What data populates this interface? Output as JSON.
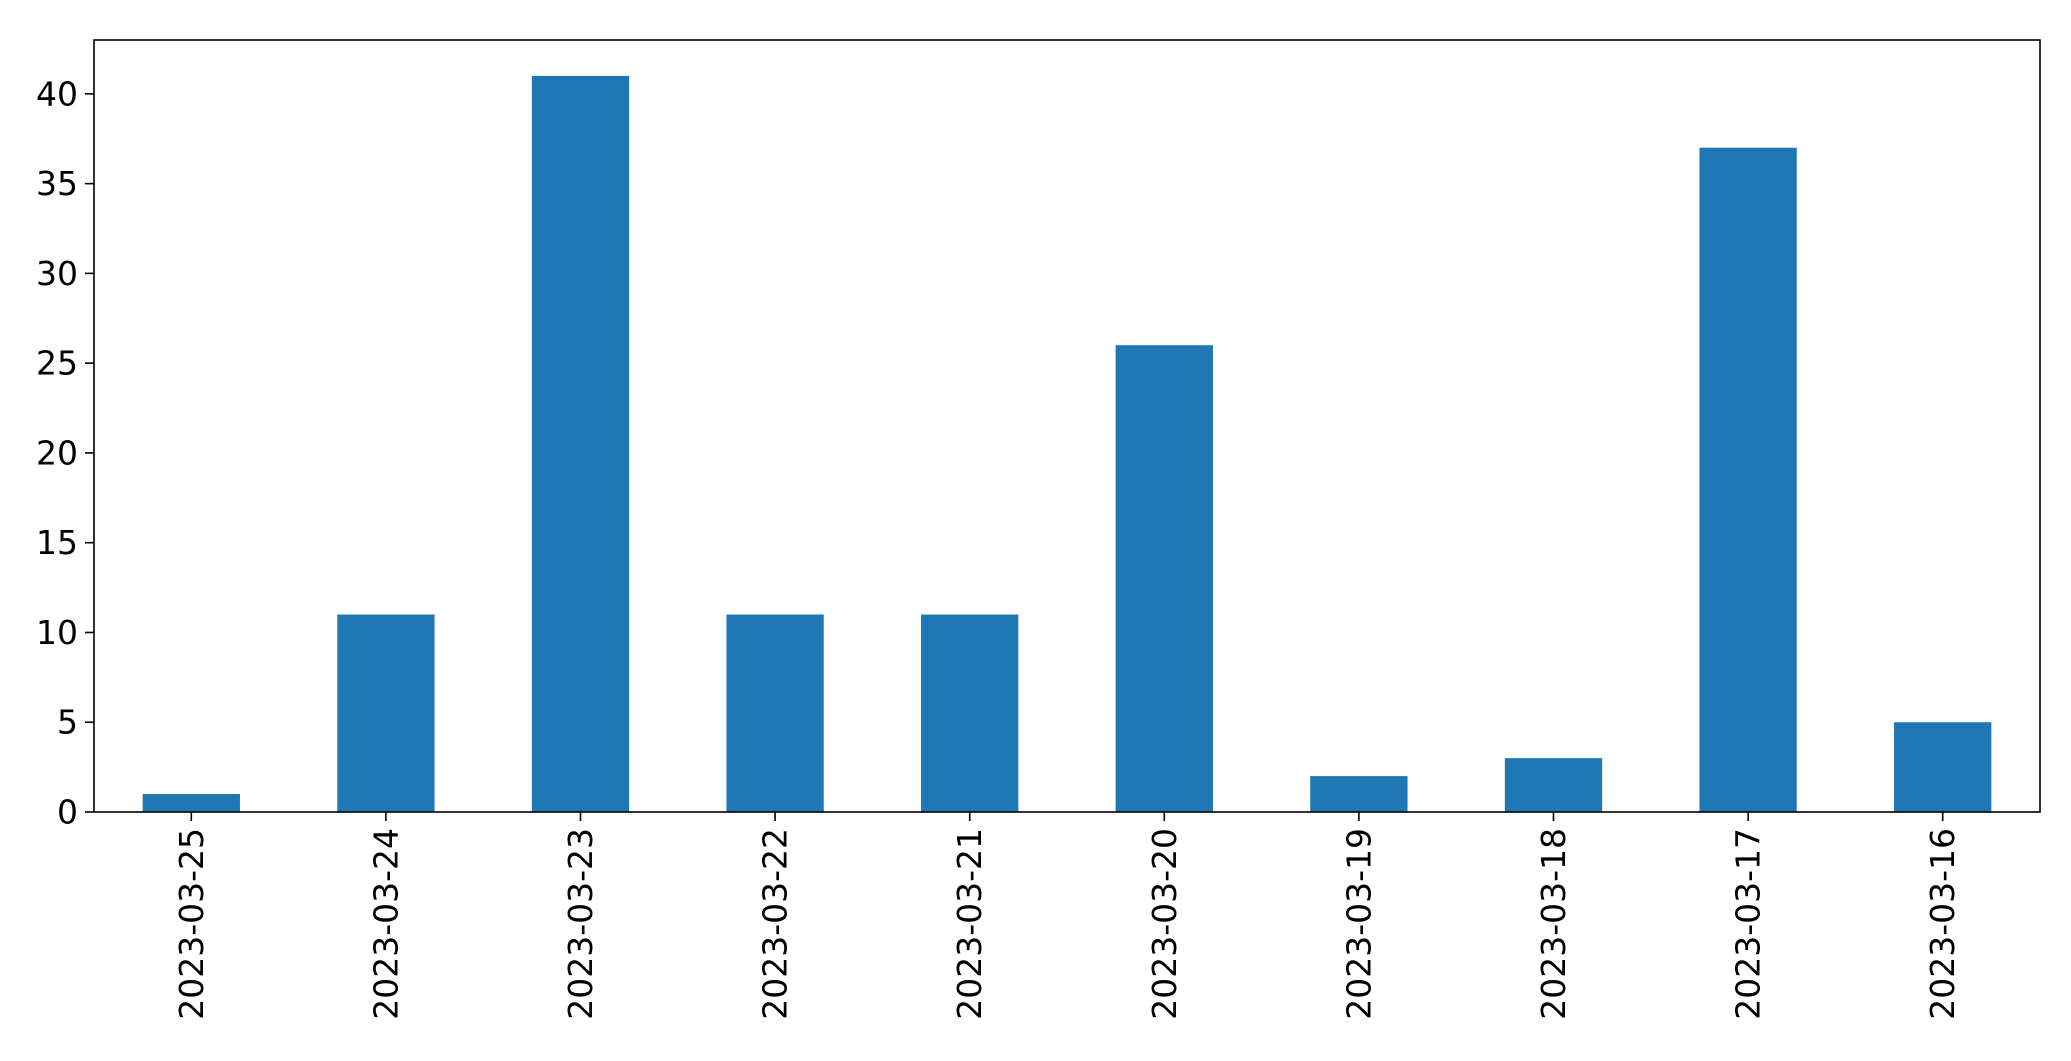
{
  "chart_data": {
    "type": "bar",
    "title": "",
    "xlabel": "",
    "ylabel": "",
    "categories": [
      "2023-03-25",
      "2023-03-24",
      "2023-03-23",
      "2023-03-22",
      "2023-03-21",
      "2023-03-20",
      "2023-03-19",
      "2023-03-18",
      "2023-03-17",
      "2023-03-16"
    ],
    "values": [
      1,
      11,
      41,
      11,
      11,
      26,
      2,
      3,
      37,
      5
    ],
    "ylim": [
      0,
      43
    ],
    "yticks": [
      0,
      5,
      10,
      15,
      20,
      25,
      30,
      35,
      40
    ],
    "x_tick_rotation": "vertical",
    "grid": false,
    "legend": "none",
    "bar_color": "#1f77b4",
    "axis_color": "#000000"
  }
}
